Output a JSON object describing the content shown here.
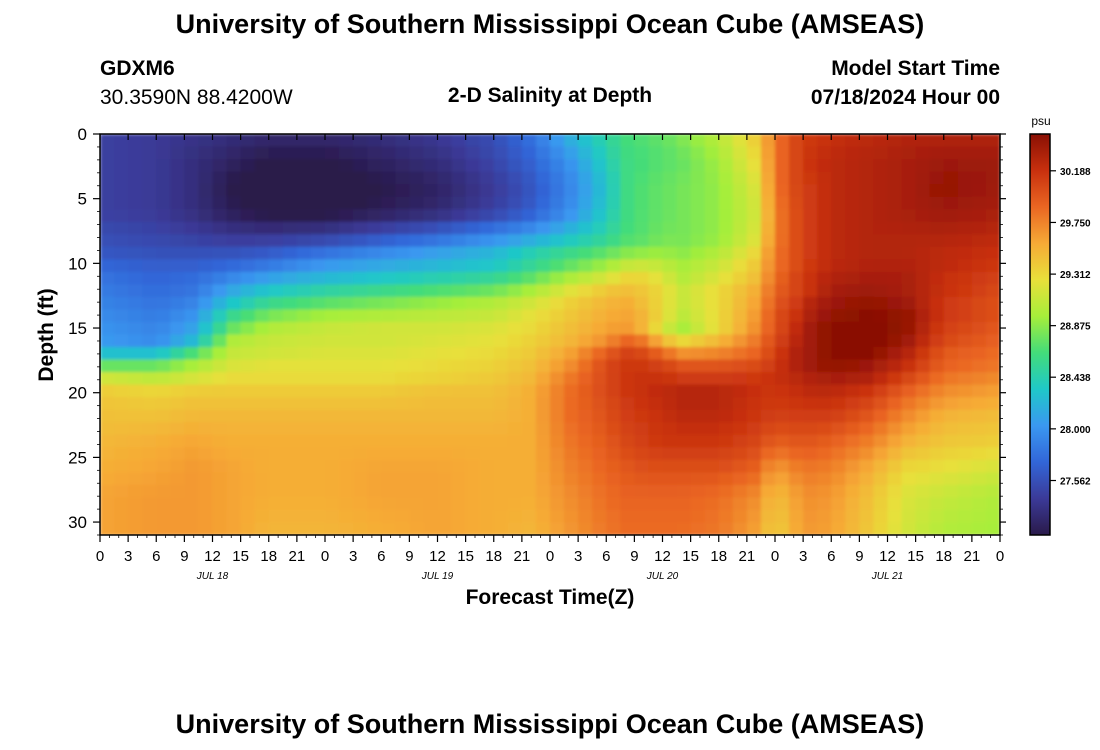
{
  "header": {
    "title": "University of Southern Mississippi Ocean Cube (AMSEAS)",
    "station": "GDXM6",
    "location": "30.3590N  88.4200W",
    "subtitle": "2-D Salinity at Depth",
    "model_start_label": "Model Start Time",
    "model_start_value": "07/18/2024 Hour 00"
  },
  "footer": {
    "title": "University of Southern Mississippi Ocean Cube (AMSEAS)"
  },
  "chart_data": {
    "type": "heatmap",
    "title": "2-D Salinity at Depth",
    "xlabel": "Forecast Time(Z)",
    "ylabel": "Depth (ft)",
    "units": "psu",
    "x_range_hours": [
      0,
      96
    ],
    "y_range_ft": [
      0,
      31
    ],
    "x_tick_labels": [
      "0",
      "3",
      "6",
      "9",
      "12",
      "15",
      "18",
      "21",
      "0",
      "3",
      "6",
      "9",
      "12",
      "15",
      "18",
      "21",
      "0",
      "3",
      "6",
      "9",
      "12",
      "15",
      "18",
      "21",
      "0",
      "3",
      "6",
      "9",
      "12",
      "15",
      "18",
      "21",
      "0"
    ],
    "x_tick_step_hours": 3,
    "day_labels": [
      {
        "label": "JUL 18",
        "hour": 12
      },
      {
        "label": "JUL 19",
        "hour": 36
      },
      {
        "label": "JUL 20",
        "hour": 60
      },
      {
        "label": "JUL 21",
        "hour": 84
      }
    ],
    "y_ticks": [
      0,
      5,
      10,
      15,
      20,
      25,
      30
    ],
    "colorbar": {
      "label": "psu",
      "min": 27.1,
      "max": 30.5,
      "ticks": [
        "30.188",
        "29.750",
        "29.312",
        "28.875",
        "28.438",
        "28.000",
        "27.562"
      ],
      "colors": [
        "#2a1a4a",
        "#3b3a98",
        "#3266d8",
        "#3a98f0",
        "#1fc8c8",
        "#43dc7a",
        "#a6ee3a",
        "#e8e03a",
        "#f6aa36",
        "#ea6622",
        "#c8300e",
        "#8a1004"
      ]
    },
    "depths_ft": [
      0,
      2,
      4,
      6,
      8,
      9,
      10,
      11,
      12,
      13,
      14,
      15,
      16,
      17,
      18,
      19,
      20,
      22,
      24,
      26,
      28,
      31
    ],
    "times_h": [
      0,
      6,
      10,
      14,
      18,
      24,
      30,
      36,
      42,
      46,
      50,
      54,
      56,
      58,
      60,
      62,
      66,
      70,
      72,
      74,
      76,
      78,
      82,
      86,
      90,
      96
    ],
    "salinity_psu": [
      [
        27.45,
        27.4,
        27.35,
        27.3,
        27.25,
        27.25,
        27.3,
        27.4,
        27.55,
        27.8,
        28.2,
        28.5,
        28.65,
        28.7,
        28.75,
        28.85,
        29.05,
        29.4,
        29.8,
        30.05,
        30.15,
        30.2,
        30.25,
        30.3,
        30.3,
        30.3
      ],
      [
        27.45,
        27.4,
        27.3,
        27.2,
        27.1,
        27.1,
        27.2,
        27.3,
        27.5,
        27.7,
        28.0,
        28.4,
        28.6,
        28.65,
        28.7,
        28.75,
        28.95,
        29.3,
        29.8,
        30.05,
        30.2,
        30.25,
        30.3,
        30.35,
        30.4,
        30.4
      ],
      [
        27.45,
        27.4,
        27.3,
        27.1,
        27.0,
        27.0,
        27.1,
        27.2,
        27.4,
        27.6,
        27.9,
        28.3,
        28.6,
        28.7,
        28.75,
        28.8,
        28.9,
        29.2,
        29.8,
        30.05,
        30.15,
        30.25,
        30.3,
        30.35,
        30.45,
        30.4
      ],
      [
        27.45,
        27.4,
        27.3,
        27.15,
        27.05,
        27.05,
        27.15,
        27.25,
        27.45,
        27.65,
        27.95,
        28.35,
        28.6,
        28.7,
        28.75,
        28.8,
        28.9,
        29.15,
        29.75,
        30.0,
        30.15,
        30.25,
        30.3,
        30.35,
        30.4,
        30.35
      ],
      [
        27.55,
        27.5,
        27.45,
        27.4,
        27.4,
        27.45,
        27.6,
        27.75,
        27.95,
        28.1,
        28.3,
        28.5,
        28.65,
        28.7,
        28.8,
        28.8,
        28.9,
        29.2,
        29.75,
        30.0,
        30.15,
        30.25,
        30.3,
        30.3,
        30.3,
        30.25
      ],
      [
        27.6,
        27.55,
        27.55,
        27.55,
        27.6,
        27.75,
        27.9,
        28.05,
        28.2,
        28.4,
        28.55,
        28.7,
        28.8,
        28.85,
        28.9,
        28.85,
        29.0,
        29.3,
        29.8,
        30.0,
        30.15,
        30.25,
        30.3,
        30.3,
        30.25,
        30.2
      ],
      [
        27.7,
        27.65,
        27.65,
        27.7,
        27.8,
        28.0,
        28.1,
        28.2,
        28.3,
        28.5,
        28.7,
        28.9,
        29.05,
        29.1,
        29.05,
        28.95,
        29.1,
        29.4,
        29.8,
        30.0,
        30.15,
        30.25,
        30.3,
        30.3,
        30.25,
        30.15
      ],
      [
        27.8,
        27.7,
        27.75,
        27.9,
        28.05,
        28.2,
        28.3,
        28.4,
        28.5,
        28.7,
        28.95,
        29.15,
        29.3,
        29.3,
        29.2,
        29.0,
        29.2,
        29.45,
        29.85,
        30.05,
        30.2,
        30.3,
        30.35,
        30.35,
        30.2,
        30.1
      ],
      [
        27.85,
        27.75,
        27.8,
        28.1,
        28.3,
        28.45,
        28.55,
        28.65,
        28.75,
        28.95,
        29.2,
        29.4,
        29.45,
        29.4,
        29.3,
        29.1,
        29.3,
        29.55,
        29.9,
        30.05,
        30.2,
        30.35,
        30.4,
        30.35,
        30.2,
        30.05
      ],
      [
        27.9,
        27.8,
        27.9,
        28.3,
        28.55,
        28.7,
        28.8,
        28.9,
        29.0,
        29.15,
        29.35,
        29.5,
        29.55,
        29.45,
        29.3,
        29.1,
        29.3,
        29.6,
        29.95,
        30.1,
        30.3,
        30.4,
        30.45,
        30.4,
        30.15,
        30.0
      ],
      [
        27.95,
        27.85,
        28.0,
        28.55,
        28.8,
        28.95,
        29.0,
        29.05,
        29.1,
        29.25,
        29.4,
        29.55,
        29.6,
        29.5,
        29.3,
        29.05,
        29.3,
        29.65,
        30.0,
        30.15,
        30.35,
        30.45,
        30.5,
        30.45,
        30.15,
        30.0
      ],
      [
        28.0,
        27.9,
        28.1,
        28.75,
        29.0,
        29.1,
        29.15,
        29.15,
        29.2,
        29.3,
        29.45,
        29.6,
        29.65,
        29.5,
        29.2,
        28.95,
        29.3,
        29.7,
        30.0,
        30.2,
        30.4,
        30.5,
        30.55,
        30.45,
        30.1,
        29.95
      ],
      [
        28.05,
        27.95,
        28.25,
        29.0,
        29.1,
        29.15,
        29.15,
        29.2,
        29.25,
        29.35,
        29.5,
        29.7,
        29.9,
        29.8,
        29.5,
        29.3,
        29.5,
        29.8,
        30.05,
        30.25,
        30.4,
        30.5,
        30.55,
        30.4,
        30.05,
        29.9
      ],
      [
        28.3,
        28.3,
        28.7,
        29.1,
        29.15,
        29.2,
        29.2,
        29.25,
        29.3,
        29.4,
        29.6,
        29.95,
        30.1,
        30.05,
        29.9,
        29.7,
        29.75,
        29.9,
        30.1,
        30.3,
        30.4,
        30.5,
        30.5,
        30.3,
        29.95,
        29.85
      ],
      [
        28.8,
        28.8,
        29.0,
        29.2,
        29.25,
        29.25,
        29.25,
        29.3,
        29.35,
        29.45,
        29.7,
        30.05,
        30.15,
        30.15,
        30.1,
        30.0,
        30.0,
        30.05,
        30.15,
        30.3,
        30.4,
        30.45,
        30.4,
        30.2,
        29.9,
        29.8
      ],
      [
        29.2,
        29.1,
        29.2,
        29.3,
        29.3,
        29.3,
        29.3,
        29.35,
        29.4,
        29.5,
        29.8,
        30.05,
        30.15,
        30.2,
        30.2,
        30.15,
        30.15,
        30.15,
        30.2,
        30.25,
        30.3,
        30.35,
        30.3,
        30.05,
        29.8,
        29.7
      ],
      [
        29.4,
        29.35,
        29.4,
        29.4,
        29.4,
        29.4,
        29.4,
        29.45,
        29.45,
        29.55,
        29.85,
        30.05,
        30.15,
        30.2,
        30.25,
        30.3,
        30.3,
        30.2,
        30.15,
        30.2,
        30.25,
        30.25,
        30.15,
        29.9,
        29.7,
        29.6
      ],
      [
        29.45,
        29.45,
        29.5,
        29.5,
        29.5,
        29.5,
        29.5,
        29.5,
        29.5,
        29.55,
        29.85,
        30.0,
        30.1,
        30.15,
        30.2,
        30.25,
        30.25,
        30.15,
        30.1,
        30.1,
        30.1,
        30.1,
        29.95,
        29.7,
        29.5,
        29.45
      ],
      [
        29.5,
        29.55,
        29.6,
        29.55,
        29.55,
        29.55,
        29.55,
        29.55,
        29.55,
        29.55,
        29.8,
        29.95,
        30.05,
        30.1,
        30.15,
        30.15,
        30.15,
        30.05,
        29.9,
        29.95,
        29.95,
        29.9,
        29.75,
        29.5,
        29.4,
        29.35
      ],
      [
        29.55,
        29.6,
        29.65,
        29.6,
        29.55,
        29.55,
        29.6,
        29.6,
        29.55,
        29.55,
        29.75,
        29.9,
        29.95,
        30.0,
        30.0,
        30.0,
        30.0,
        29.9,
        29.6,
        29.75,
        29.8,
        29.75,
        29.55,
        29.3,
        29.25,
        29.15
      ],
      [
        29.6,
        29.65,
        29.65,
        29.6,
        29.55,
        29.55,
        29.6,
        29.6,
        29.55,
        29.55,
        29.7,
        29.85,
        29.9,
        29.9,
        29.9,
        29.9,
        29.85,
        29.7,
        29.45,
        29.6,
        29.7,
        29.65,
        29.45,
        29.2,
        29.1,
        29.0
      ],
      [
        29.6,
        29.65,
        29.65,
        29.6,
        29.5,
        29.5,
        29.55,
        29.6,
        29.55,
        29.5,
        29.65,
        29.8,
        29.85,
        29.85,
        29.85,
        29.85,
        29.8,
        29.6,
        29.35,
        29.55,
        29.65,
        29.6,
        29.4,
        29.15,
        29.0,
        28.95
      ]
    ]
  }
}
